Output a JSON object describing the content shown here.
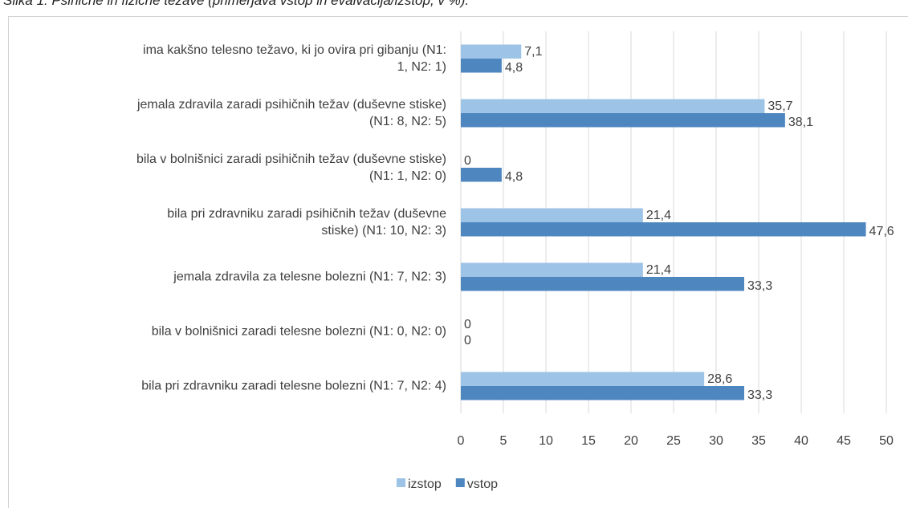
{
  "chart_data": {
    "type": "bar",
    "orientation": "horizontal",
    "title": "Slika 1: Psihične in fizične težave (primerjava vstop in evalvacija/izstop, v %).",
    "categories": [
      "ima kakšno telesno težavo, ki jo ovira pri gibanju (N1:\n1,  N2: 1)",
      "jemala zdravila zaradi psihičnih težav (duševne stiske)\n(N1: 8, N2: 5)",
      "bila v bolnišnici zaradi psihičnih težav (duševne stiske)\n(N1: 1, N2: 0)",
      "bila pri zdravniku zaradi psihičnih težav (duševne\nstiske) (N1: 10, N2: 3)",
      "jemala zdravila za telesne bolezni (N1: 7, N2: 3)",
      "bila v bolnišnici zaradi telesne bolezni (N1: 0, N2: 0)",
      "bila pri zdravniku zaradi telesne bolezni (N1: 7, N2: 4)"
    ],
    "series": [
      {
        "name": "izstop",
        "color": "#9dc3e6",
        "values": [
          7.1,
          35.7,
          0,
          21.4,
          21.4,
          0,
          28.6
        ],
        "value_labels": [
          "7,1",
          "35,7",
          "0",
          "21,4",
          "21,4",
          "0",
          "28,6"
        ]
      },
      {
        "name": "vstop",
        "color": "#4e86c0",
        "values": [
          4.8,
          38.1,
          4.8,
          47.6,
          33.3,
          0,
          33.3
        ],
        "value_labels": [
          "4,8",
          "38,1",
          "4,8",
          "47,6",
          "33,3",
          "0",
          "33,3"
        ]
      }
    ],
    "xlim": [
      0,
      50
    ],
    "xticks": [
      0,
      5,
      10,
      15,
      20,
      25,
      30,
      35,
      40,
      45,
      50
    ],
    "grid": true,
    "legend": "bottom"
  }
}
